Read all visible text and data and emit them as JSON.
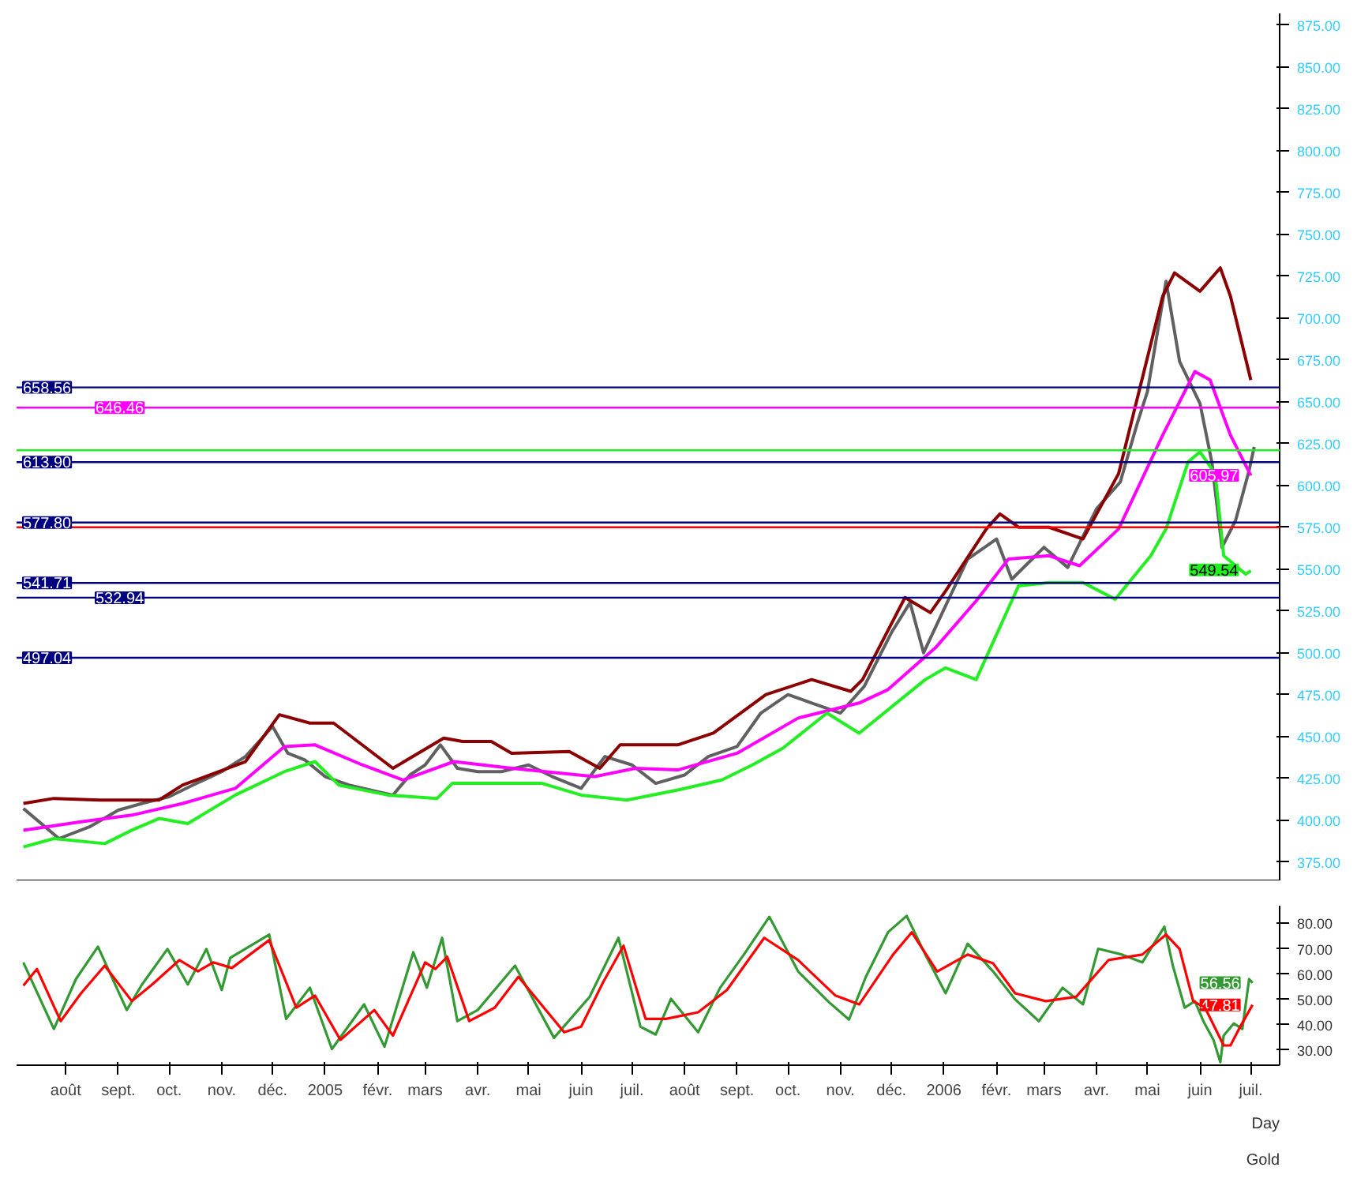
{
  "chart_data": [
    {
      "type": "line",
      "xlim": [
        "2004-07-03",
        "2006-07-18"
      ],
      "ylim": [
        364,
        882
      ],
      "tick_labels": "y",
      "grid": false,
      "yticks": [
        {
          "value": 375,
          "label": "375.00"
        },
        {
          "value": 400,
          "label": "400.00"
        },
        {
          "value": 425,
          "label": "425.00"
        },
        {
          "value": 450,
          "label": "450.00"
        },
        {
          "value": 475,
          "label": "475.00"
        },
        {
          "value": 500,
          "label": "500.00"
        },
        {
          "value": 525,
          "label": "525.00"
        },
        {
          "value": 550,
          "label": "550.00"
        },
        {
          "value": 575,
          "label": "575.00"
        },
        {
          "value": 600,
          "label": "600.00"
        },
        {
          "value": 625,
          "label": "625.00"
        },
        {
          "value": 650,
          "label": "650.00"
        },
        {
          "value": 675,
          "label": "675.00"
        },
        {
          "value": 700,
          "label": "700.00"
        },
        {
          "value": 725,
          "label": "725.00"
        },
        {
          "value": 750,
          "label": "750.00"
        },
        {
          "value": 775,
          "label": "775.00"
        },
        {
          "value": 800,
          "label": "800.00"
        },
        {
          "value": 825,
          "label": "825.00"
        },
        {
          "value": 850,
          "label": "850.00"
        },
        {
          "value": 875,
          "label": "875.00"
        }
      ],
      "series": [
        {
          "color": "#606060",
          "x": [
            "2004-07-07",
            "2004-07-28",
            "2004-08-15",
            "2004-09-01",
            "2004-09-15",
            "2004-10-01",
            "2004-10-15",
            "2004-11-01",
            "2004-11-15",
            "2004-12-01",
            "2004-12-10",
            "2004-12-20",
            "2005-01-01",
            "2005-01-15",
            "2005-02-01",
            "2005-02-10",
            "2005-02-20",
            "2005-03-01",
            "2005-03-10",
            "2005-03-20",
            "2005-04-01",
            "2005-04-15",
            "2005-05-01",
            "2005-05-15",
            "2005-06-01",
            "2005-06-15",
            "2005-07-01",
            "2005-07-15",
            "2005-08-01",
            "2005-08-15",
            "2005-09-01",
            "2005-09-15",
            "2005-10-01",
            "2005-10-15",
            "2005-11-01",
            "2005-11-15",
            "2005-12-01",
            "2005-12-12",
            "2005-12-20",
            "2006-01-01",
            "2006-01-15",
            "2006-02-01",
            "2006-02-10",
            "2006-02-20",
            "2006-03-01",
            "2006-03-15",
            "2006-04-01",
            "2006-04-15",
            "2006-04-25",
            "2006-05-01",
            "2006-05-12",
            "2006-05-20",
            "2006-06-01",
            "2006-06-08",
            "2006-06-14",
            "2006-06-22",
            "2006-06-30",
            "2006-07-03"
          ],
          "values": [
            407,
            389,
            396,
            406,
            410,
            414,
            421,
            429,
            438,
            456,
            440,
            436,
            426,
            421,
            417,
            415,
            427,
            433,
            445,
            431,
            429,
            429,
            433,
            426,
            419,
            438,
            433,
            422,
            427,
            438,
            444,
            464,
            475,
            470,
            464,
            480,
            512,
            530,
            500,
            526,
            556,
            568,
            544,
            554,
            563,
            551,
            586,
            602,
            637,
            656,
            722,
            674,
            649,
            614,
            563,
            579,
            609,
            623
          ]
        },
        {
          "color": "#8b0000",
          "x": [
            "2004-07-07",
            "2004-07-25",
            "2004-08-21",
            "2004-09-25",
            "2004-10-09",
            "2004-11-15",
            "2004-12-05",
            "2004-12-23",
            "2005-01-06",
            "2005-02-10",
            "2005-03-12",
            "2005-03-23",
            "2005-04-09",
            "2005-04-21",
            "2005-05-25",
            "2005-06-12",
            "2005-06-24",
            "2005-07-28",
            "2005-08-18",
            "2005-09-18",
            "2005-10-15",
            "2005-11-07",
            "2005-11-14",
            "2005-12-09",
            "2005-12-24",
            "2006-01-02",
            "2006-01-26",
            "2006-02-03",
            "2006-02-14",
            "2006-03-04",
            "2006-03-24",
            "2006-04-14",
            "2006-05-10",
            "2006-05-17",
            "2006-06-01",
            "2006-06-13",
            "2006-06-19",
            "2006-07-01"
          ],
          "values": [
            410,
            413,
            412,
            412,
            421,
            435,
            463,
            458,
            458,
            431,
            449,
            447,
            447,
            440,
            441,
            431,
            445,
            445,
            452,
            475,
            484,
            477,
            484,
            533,
            524,
            537,
            574,
            583,
            575,
            575,
            568,
            607,
            713,
            727,
            716,
            730,
            713,
            663
          ]
        },
        {
          "color": "#ff00ff",
          "x": [
            "2004-07-07",
            "2004-08-10",
            "2004-09-09",
            "2004-10-09",
            "2004-11-09",
            "2004-12-08",
            "2004-12-26",
            "2005-01-23",
            "2005-02-16",
            "2005-03-18",
            "2005-04-21",
            "2005-06-09",
            "2005-07-03",
            "2005-07-28",
            "2005-09-01",
            "2005-10-07",
            "2005-11-12",
            "2005-11-29",
            "2005-12-27",
            "2006-01-20",
            "2006-02-08",
            "2006-03-04",
            "2006-03-22",
            "2006-04-14",
            "2006-05-10",
            "2006-05-29",
            "2006-06-07",
            "2006-06-19",
            "2006-07-01"
          ],
          "values": [
            394,
            399,
            403,
            410,
            419,
            444,
            445,
            433,
            424,
            435,
            431,
            426,
            431,
            430,
            440,
            461,
            470,
            478,
            503,
            531,
            556,
            558,
            552,
            574,
            630,
            668,
            663,
            630,
            606
          ]
        },
        {
          "color": "#22ee22",
          "x": [
            "2004-07-07",
            "2004-07-25",
            "2004-08-24",
            "2004-09-09",
            "2004-09-25",
            "2004-10-12",
            "2004-11-09",
            "2004-12-08",
            "2004-12-26",
            "2005-01-09",
            "2005-02-07",
            "2005-03-08",
            "2005-03-17",
            "2005-04-16",
            "2005-05-09",
            "2005-06-01",
            "2005-06-28",
            "2005-07-28",
            "2005-08-23",
            "2005-09-10",
            "2005-09-28",
            "2005-10-24",
            "2005-11-12",
            "2005-12-21",
            "2006-01-02",
            "2006-01-20",
            "2006-02-14",
            "2006-03-04",
            "2006-03-24",
            "2006-04-12",
            "2006-05-03",
            "2006-05-12",
            "2006-05-25",
            "2006-06-01",
            "2006-06-10",
            "2006-06-15",
            "2006-06-28",
            "2006-07-01"
          ],
          "values": [
            384,
            389,
            386,
            394,
            401,
            398,
            415,
            429,
            435,
            421,
            415,
            413,
            422,
            422,
            422,
            415,
            412,
            418,
            424,
            433,
            443,
            464,
            452,
            484,
            491,
            484,
            540,
            542,
            542,
            532,
            558,
            574,
            614,
            620,
            607,
            558,
            547,
            549
          ]
        }
      ],
      "ref_lines": [
        {
          "axis": "y",
          "value": 658.56,
          "label": "658.56",
          "color": "#000080"
        },
        {
          "axis": "y",
          "value": 646.46,
          "label": "646.46",
          "color": "#ff00ff"
        },
        {
          "axis": "y",
          "value": 621,
          "label": null,
          "color": "#22ee22"
        },
        {
          "axis": "y",
          "value": 613.9,
          "label": "613.90",
          "color": "#000080"
        },
        {
          "axis": "y",
          "value": 577.8,
          "label": "577.80",
          "color": "#000080"
        },
        {
          "axis": "y",
          "value": 575,
          "label": null,
          "color": "#ff0000"
        },
        {
          "axis": "y",
          "value": 541.71,
          "label": "541.71",
          "color": "#000080"
        },
        {
          "axis": "y",
          "value": 532.94,
          "label": "532.94",
          "color": "#000080"
        },
        {
          "axis": "y",
          "value": 497.04,
          "label": "497.04",
          "color": "#000080"
        }
      ],
      "annotations": [
        {
          "text": "605.97",
          "x": "2006-07-01",
          "y": 605.97
        },
        {
          "text": "549.54",
          "x": "2006-07-01",
          "y": 549.54
        }
      ]
    },
    {
      "type": "line",
      "xlim": [
        "2004-07-03",
        "2006-07-18"
      ],
      "ylim": [
        24,
        87
      ],
      "grid": false,
      "xticks": [
        {
          "value": "2004-08-01",
          "label": "août"
        },
        {
          "value": "2004-09-01",
          "label": "sept."
        },
        {
          "value": "2004-10-01",
          "label": "oct."
        },
        {
          "value": "2004-11-01",
          "label": "nov."
        },
        {
          "value": "2004-12-01",
          "label": "déc."
        },
        {
          "value": "2005-01-01",
          "label": "2005"
        },
        {
          "value": "2005-02-01",
          "label": "févr."
        },
        {
          "value": "2005-03-01",
          "label": "mars"
        },
        {
          "value": "2005-04-01",
          "label": "avr."
        },
        {
          "value": "2005-05-01",
          "label": "mai"
        },
        {
          "value": "2005-06-01",
          "label": "juin"
        },
        {
          "value": "2005-07-01",
          "label": "juil."
        },
        {
          "value": "2005-08-01",
          "label": "août"
        },
        {
          "value": "2005-09-01",
          "label": "sept."
        },
        {
          "value": "2005-10-01",
          "label": "oct."
        },
        {
          "value": "2005-11-01",
          "label": "nov."
        },
        {
          "value": "2005-12-01",
          "label": "déc."
        },
        {
          "value": "2006-01-01",
          "label": "2006"
        },
        {
          "value": "2006-02-01",
          "label": "févr."
        },
        {
          "value": "2006-03-01",
          "label": "mars"
        },
        {
          "value": "2006-04-01",
          "label": "avr."
        },
        {
          "value": "2006-05-01",
          "label": "mai"
        },
        {
          "value": "2006-06-01",
          "label": "juin"
        },
        {
          "value": "2006-07-01",
          "label": "juil."
        }
      ],
      "yticks": [
        {
          "value": 30,
          "label": "30.00"
        },
        {
          "value": 40,
          "label": "40.00"
        },
        {
          "value": 50,
          "label": "50.00"
        },
        {
          "value": 60,
          "label": "60.00"
        },
        {
          "value": 70,
          "label": "70.00"
        },
        {
          "value": 80,
          "label": "80.00"
        }
      ],
      "series": [
        {
          "color": "#339933",
          "x": [
            "2004-07-07",
            "2004-07-25",
            "2004-08-07",
            "2004-08-20",
            "2004-09-06",
            "2004-09-15",
            "2004-09-30",
            "2004-10-12",
            "2004-10-23",
            "2004-11-01",
            "2004-11-06",
            "2004-11-29",
            "2004-12-09",
            "2004-12-23",
            "2005-01-05",
            "2005-01-24",
            "2005-02-05",
            "2005-02-22",
            "2005-03-02",
            "2005-03-11",
            "2005-03-20",
            "2005-04-01",
            "2005-04-23",
            "2005-05-16",
            "2005-06-06",
            "2005-06-23",
            "2005-07-06",
            "2005-07-15",
            "2005-07-24",
            "2005-08-09",
            "2005-08-22",
            "2005-09-05",
            "2005-09-20",
            "2005-10-07",
            "2005-10-25",
            "2005-11-06",
            "2005-11-16",
            "2005-11-29",
            "2005-12-10",
            "2005-12-21",
            "2006-01-02",
            "2006-01-15",
            "2006-01-30",
            "2006-02-12",
            "2006-02-26",
            "2006-03-12",
            "2006-03-24",
            "2006-04-02",
            "2006-04-16",
            "2006-04-28",
            "2006-05-11",
            "2006-05-16",
            "2006-05-23",
            "2006-05-29",
            "2006-06-03",
            "2006-06-09",
            "2006-06-13",
            "2006-06-15",
            "2006-06-21",
            "2006-06-26",
            "2006-06-30",
            "2006-07-02"
          ],
          "values": [
            64.6,
            38.3,
            58,
            70.8,
            45.8,
            55.9,
            69.9,
            55.9,
            69.9,
            53.7,
            66.4,
            75.6,
            42.3,
            54.6,
            30.4,
            48,
            31.3,
            68.6,
            54.6,
            74.3,
            41.4,
            45.8,
            63.3,
            34.8,
            51,
            74.3,
            39.2,
            36.1,
            50.2,
            37,
            54.6,
            67.7,
            82.6,
            61,
            49,
            42,
            59,
            76.5,
            83,
            67.7,
            52.4,
            72,
            61,
            50,
            41.4,
            54.6,
            48,
            70,
            67.7,
            64.6,
            78.7,
            63.3,
            46.7,
            49.3,
            41.4,
            34,
            25.2,
            35.7,
            40.5,
            38.3,
            58,
            56.56
          ]
        },
        {
          "color": "#ff0000",
          "x": [
            "2004-07-07",
            "2004-07-15",
            "2004-07-29",
            "2004-08-10",
            "2004-08-24",
            "2004-09-09",
            "2004-09-21",
            "2004-10-07",
            "2004-10-18",
            "2004-10-27",
            "2004-11-07",
            "2004-11-29",
            "2004-12-15",
            "2004-12-26",
            "2005-01-10",
            "2005-01-30",
            "2005-02-10",
            "2005-03-01",
            "2005-03-07",
            "2005-03-14",
            "2005-03-27",
            "2005-04-11",
            "2005-04-25",
            "2005-05-22",
            "2005-06-01",
            "2005-06-14",
            "2005-06-26",
            "2005-07-09",
            "2005-07-21",
            "2005-08-09",
            "2005-08-26",
            "2005-09-17",
            "2005-10-07",
            "2005-10-29",
            "2005-11-12",
            "2005-12-02",
            "2005-12-13",
            "2005-12-28",
            "2006-01-15",
            "2006-01-30",
            "2006-02-12",
            "2006-03-02",
            "2006-03-20",
            "2006-04-08",
            "2006-04-28",
            "2006-05-12",
            "2006-05-20",
            "2006-05-28",
            "2006-06-04",
            "2006-06-15",
            "2006-06-19",
            "2006-06-24",
            "2006-07-02"
          ],
          "values": [
            55.4,
            62,
            41.4,
            52.4,
            63.3,
            49.3,
            55.9,
            65.5,
            61.1,
            64.6,
            62.4,
            73.4,
            46.7,
            51.5,
            34,
            45.8,
            35.7,
            64.6,
            62,
            66.8,
            41.4,
            46.7,
            58.9,
            37,
            39.2,
            56.8,
            71.2,
            42.3,
            42.3,
            44.9,
            53.7,
            74.3,
            65.5,
            51.5,
            48,
            67.7,
            76.5,
            61,
            67.7,
            64.2,
            52.4,
            49.3,
            51,
            65.5,
            67.7,
            75.6,
            69.9,
            49.3,
            46.7,
            31.8,
            31.8,
            38.3,
            47.81
          ]
        }
      ],
      "annotations": [
        {
          "text": "56.56",
          "x": "2006-07-02",
          "y": 56.56
        },
        {
          "text": "47.81",
          "x": "2006-07-02",
          "y": 47.81
        },
        "Day",
        "Gold"
      ]
    }
  ]
}
